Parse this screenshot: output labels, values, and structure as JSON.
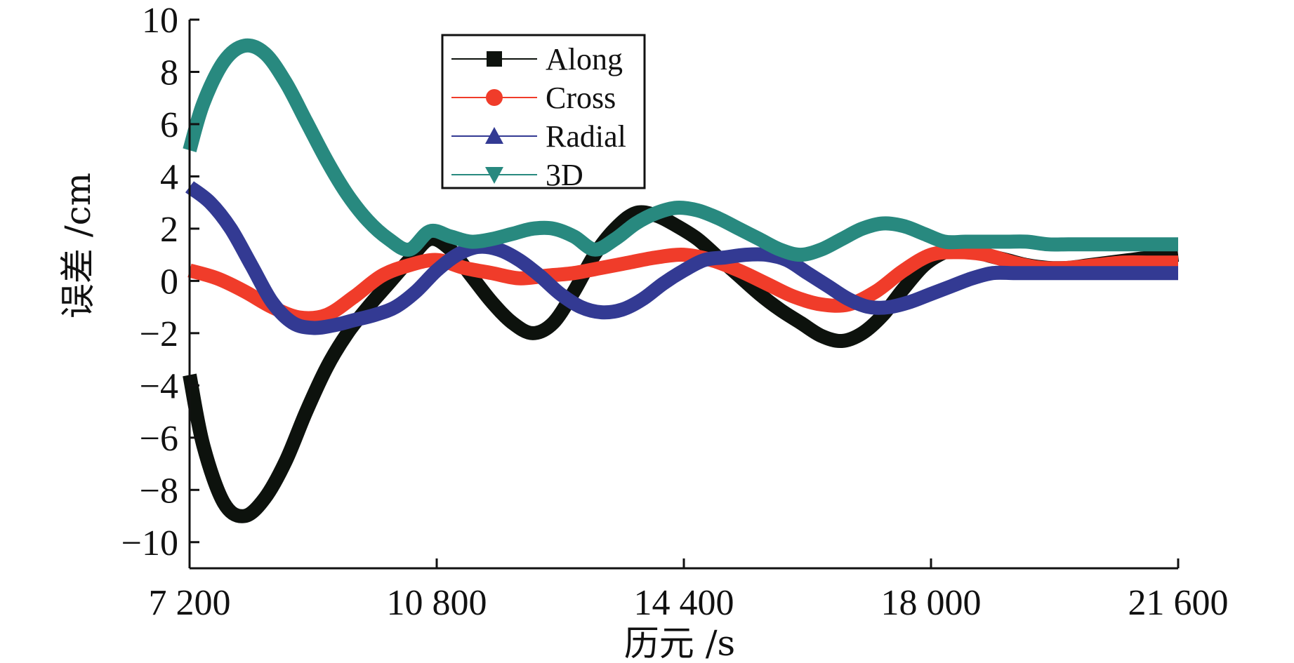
{
  "chart_data": {
    "type": "line",
    "title": "",
    "xlabel": "历元 /s",
    "ylabel": "误差 /cm",
    "xlim": [
      7200,
      21600
    ],
    "ylim": [
      -11,
      10
    ],
    "x_ticks": [
      7200,
      10800,
      14400,
      18000,
      21600
    ],
    "x_tick_labels": [
      "7 200",
      "10 800",
      "14 400",
      "18 000",
      "21 600"
    ],
    "y_ticks": [
      -10,
      -8,
      -6,
      -4,
      -2,
      0,
      2,
      4,
      6,
      8,
      10
    ],
    "y_tick_labels": [
      "−10",
      "−8",
      "−6",
      "−4",
      "−2",
      "0",
      "2",
      "4",
      "6",
      "8",
      "10"
    ],
    "grid": false,
    "legend_position": "top-left",
    "series": [
      {
        "name": "Along",
        "color": "#0d120d",
        "marker": "square",
        "x": [
          7200,
          7400,
          7700,
          8000,
          8300,
          8600,
          8900,
          9200,
          9500,
          9800,
          10100,
          10400,
          10700,
          11000,
          11300,
          11600,
          11900,
          12200,
          12500,
          12800,
          13100,
          13400,
          13700,
          14000,
          14300,
          14600,
          14900,
          15200,
          15500,
          15800,
          16100,
          16400,
          16700,
          17000,
          17300,
          17600,
          17900,
          18200,
          18500,
          18800,
          19100,
          19400,
          19700,
          20000,
          20300,
          20600,
          20900,
          21200,
          21600
        ],
        "y": [
          -3.6,
          -6.3,
          -8.5,
          -9.0,
          -8.3,
          -6.9,
          -5.0,
          -3.3,
          -2.0,
          -1.0,
          -0.1,
          0.8,
          1.6,
          1.2,
          0.2,
          -0.8,
          -1.6,
          -2.0,
          -1.6,
          -0.4,
          1.0,
          2.0,
          2.6,
          2.5,
          2.1,
          1.6,
          0.9,
          0.2,
          -0.5,
          -1.1,
          -1.6,
          -2.1,
          -2.3,
          -2.0,
          -1.3,
          -0.3,
          0.6,
          1.1,
          1.3,
          1.0,
          0.8,
          0.6,
          0.5,
          0.5,
          0.6,
          0.7,
          0.8,
          0.9,
          1.0
        ]
      },
      {
        "name": "Cross",
        "color": "#f03c2a",
        "marker": "circle",
        "x": [
          7200,
          7600,
          8000,
          8400,
          8800,
          9200,
          9600,
          10000,
          10400,
          10800,
          11200,
          11600,
          12000,
          12400,
          12800,
          13200,
          13600,
          14000,
          14400,
          14800,
          15200,
          15600,
          16000,
          16400,
          16800,
          17200,
          17600,
          18000,
          18400,
          18800,
          19200,
          19600,
          20000,
          20400,
          20800,
          21200,
          21600
        ],
        "y": [
          0.4,
          0.1,
          -0.4,
          -1.0,
          -1.4,
          -1.3,
          -0.6,
          0.2,
          0.6,
          0.8,
          0.5,
          0.3,
          0.1,
          0.2,
          0.3,
          0.5,
          0.7,
          0.9,
          1.0,
          0.8,
          0.4,
          -0.1,
          -0.6,
          -0.9,
          -0.9,
          -0.4,
          0.4,
          1.0,
          1.1,
          1.0,
          0.7,
          0.5,
          0.5,
          0.6,
          0.7,
          0.7,
          0.7
        ]
      },
      {
        "name": "Radial",
        "color": "#333a93",
        "marker": "triangle-up",
        "x": [
          7200,
          7500,
          7800,
          8100,
          8400,
          8700,
          9000,
          9300,
          9600,
          9900,
          10200,
          10500,
          10800,
          11100,
          11400,
          11700,
          12000,
          12300,
          12600,
          12900,
          13200,
          13500,
          13800,
          14100,
          14400,
          14700,
          15000,
          15300,
          15600,
          15900,
          16200,
          16500,
          16800,
          17100,
          17400,
          17700,
          18000,
          18300,
          18600,
          18900,
          19200,
          19500,
          19800,
          20100,
          20400,
          20700,
          21000,
          21300,
          21600
        ],
        "y": [
          3.6,
          3.0,
          2.0,
          0.6,
          -0.8,
          -1.6,
          -1.8,
          -1.7,
          -1.5,
          -1.3,
          -1.0,
          -0.4,
          0.4,
          1.0,
          1.3,
          1.2,
          0.8,
          0.2,
          -0.5,
          -1.0,
          -1.2,
          -1.1,
          -0.7,
          -0.1,
          0.4,
          0.8,
          0.9,
          1.0,
          1.0,
          0.8,
          0.3,
          -0.2,
          -0.7,
          -1.0,
          -1.0,
          -0.8,
          -0.5,
          -0.2,
          0.1,
          0.3,
          0.3,
          0.3,
          0.3,
          0.3,
          0.3,
          0.3,
          0.3,
          0.3,
          0.3
        ]
      },
      {
        "name": "3D",
        "color": "#28897f",
        "marker": "triangle-down",
        "x": [
          7200,
          7400,
          7700,
          8000,
          8300,
          8600,
          8900,
          9200,
          9500,
          9800,
          10100,
          10400,
          10700,
          11000,
          11300,
          11600,
          11900,
          12200,
          12500,
          12800,
          13100,
          13400,
          13700,
          14000,
          14300,
          14600,
          14900,
          15200,
          15500,
          15800,
          16100,
          16400,
          16700,
          17000,
          17300,
          17600,
          17900,
          18200,
          18500,
          18800,
          19100,
          19400,
          19700,
          20000,
          20300,
          20600,
          20900,
          21200,
          21600
        ],
        "y": [
          5.0,
          6.8,
          8.4,
          9.0,
          8.7,
          7.6,
          6.1,
          4.6,
          3.3,
          2.3,
          1.6,
          1.2,
          1.9,
          1.7,
          1.5,
          1.6,
          1.8,
          2.0,
          2.0,
          1.7,
          1.2,
          1.6,
          2.2,
          2.6,
          2.8,
          2.7,
          2.4,
          2.0,
          1.6,
          1.2,
          1.0,
          1.2,
          1.6,
          2.0,
          2.2,
          2.1,
          1.8,
          1.5,
          1.5,
          1.5,
          1.5,
          1.5,
          1.4,
          1.4,
          1.4,
          1.4,
          1.4,
          1.4,
          1.4
        ]
      }
    ]
  }
}
